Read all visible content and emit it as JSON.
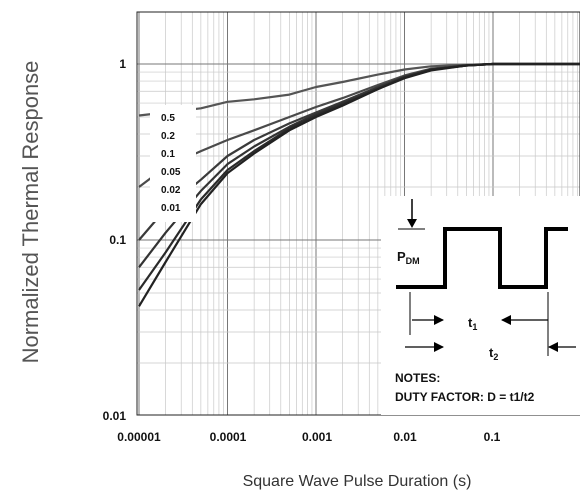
{
  "chart_data": {
    "type": "line",
    "title": "",
    "xlabel": "Square Wave Pulse Duration (s)",
    "ylabel": "Normalized Thermal Response",
    "xscale": "log",
    "yscale": "log",
    "xlim": [
      1e-05,
      1
    ],
    "ylim": [
      0.01,
      1.6
    ],
    "grid": true,
    "x_ticks": [
      {
        "value": 1e-05,
        "label": "0.00001"
      },
      {
        "value": 0.0001,
        "label": "0.0001"
      },
      {
        "value": 0.001,
        "label": "0.001"
      },
      {
        "value": 0.01,
        "label": "0.01"
      },
      {
        "value": 0.1,
        "label": "0.1"
      }
    ],
    "y_ticks": [
      {
        "value": 1,
        "label": "1"
      },
      {
        "value": 0.1,
        "label": "0.1"
      },
      {
        "value": 0.01,
        "label": "0.01"
      }
    ],
    "legend_placement": "left",
    "series": [
      {
        "name": "0.5",
        "x": [
          1e-05,
          2e-05,
          5e-05,
          0.0001,
          0.0002,
          0.0005,
          0.001,
          0.002,
          0.005,
          0.01,
          0.02,
          0.05,
          0.1,
          0.2,
          0.5,
          1
        ],
        "y": [
          0.51,
          0.53,
          0.56,
          0.61,
          0.63,
          0.67,
          0.74,
          0.79,
          0.87,
          0.93,
          0.97,
          0.99,
          1.0,
          1.0,
          1.0,
          1.0
        ]
      },
      {
        "name": "0.2",
        "x": [
          1e-05,
          2e-05,
          5e-05,
          0.0001,
          0.0002,
          0.0005,
          0.001,
          0.002,
          0.005,
          0.01,
          0.02,
          0.05,
          0.1,
          0.2,
          0.5,
          1
        ],
        "y": [
          0.2,
          0.26,
          0.32,
          0.37,
          0.42,
          0.5,
          0.57,
          0.64,
          0.76,
          0.86,
          0.94,
          0.985,
          1.0,
          1.0,
          1.0,
          1.0
        ]
      },
      {
        "name": "0.1",
        "x": [
          1e-05,
          2e-05,
          5e-05,
          0.0001,
          0.0002,
          0.0005,
          0.001,
          0.002,
          0.005,
          0.01,
          0.02,
          0.05,
          0.1,
          0.2,
          0.5,
          1
        ],
        "y": [
          0.1,
          0.15,
          0.22,
          0.3,
          0.37,
          0.46,
          0.53,
          0.61,
          0.74,
          0.85,
          0.93,
          0.98,
          1.0,
          1.0,
          1.0,
          1.0
        ]
      },
      {
        "name": "0.05",
        "x": [
          1e-05,
          2e-05,
          5e-05,
          0.0001,
          0.0002,
          0.0005,
          0.001,
          0.002,
          0.005,
          0.01,
          0.02,
          0.05,
          0.1,
          0.2,
          0.5,
          1
        ],
        "y": [
          0.07,
          0.11,
          0.19,
          0.27,
          0.34,
          0.44,
          0.52,
          0.6,
          0.73,
          0.84,
          0.93,
          0.98,
          1.0,
          1.0,
          1.0,
          1.0
        ]
      },
      {
        "name": "0.02",
        "x": [
          1e-05,
          2e-05,
          5e-05,
          0.0001,
          0.0002,
          0.0005,
          0.001,
          0.002,
          0.005,
          0.01,
          0.02,
          0.05,
          0.1,
          0.2,
          0.5,
          1
        ],
        "y": [
          0.052,
          0.085,
          0.17,
          0.25,
          0.32,
          0.43,
          0.51,
          0.59,
          0.72,
          0.84,
          0.93,
          0.98,
          1.0,
          1.0,
          1.0,
          1.0
        ]
      },
      {
        "name": "0.01",
        "x": [
          1e-05,
          2e-05,
          5e-05,
          0.0001,
          0.0002,
          0.0005,
          0.001,
          0.002,
          0.005,
          0.01,
          0.02,
          0.05,
          0.1,
          0.2,
          0.5,
          1
        ],
        "y": [
          0.042,
          0.075,
          0.16,
          0.24,
          0.31,
          0.42,
          0.5,
          0.58,
          0.72,
          0.83,
          0.92,
          0.98,
          1.0,
          1.0,
          1.0,
          1.0
        ]
      }
    ],
    "inset": {
      "pdm_label": "P",
      "pdm_sub": "DM",
      "t1_label": "t",
      "t1_sub": "1",
      "t2_label": "t",
      "t2_sub": "2",
      "notes_title": "NOTES:",
      "notes_text": "DUTY FACTOR: D = t1/t2"
    },
    "colors": {
      "curves": [
        "#555555",
        "#4a4a4a",
        "#3a3a3a",
        "#333333",
        "#2a2a2a",
        "#222222"
      ],
      "grid": "#c8c8c8",
      "major_grid": "#777777"
    }
  }
}
